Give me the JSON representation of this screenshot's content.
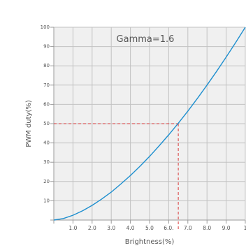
{
  "chart_data": {
    "type": "line",
    "title": "",
    "annotation": "Gamma=1.6",
    "gamma": 1.6,
    "xlabel": "Brightness(%)",
    "ylabel": "PWM duty(%)",
    "xlim": [
      0,
      10
    ],
    "ylim": [
      0,
      100
    ],
    "x_tick_labels": [
      "1.0",
      "2.0",
      "3.0",
      "4.0",
      "5.0",
      "6.0.",
      "7.0",
      "8.0",
      "9.0",
      "1"
    ],
    "y_tick_labels": [
      "10",
      "20",
      "30",
      "40",
      "50",
      "60",
      "70",
      "80",
      "90",
      "100"
    ],
    "grid": true,
    "series": [
      {
        "x": [
          0,
          0.5,
          1.0,
          1.5,
          2.0,
          2.5,
          3.0,
          3.5,
          4.0,
          4.5,
          5.0,
          5.5,
          6.0,
          6.5,
          7.0,
          7.5,
          8.0,
          8.5,
          9.0,
          9.5,
          10.0
        ],
        "y": [
          0,
          0.8,
          2.5,
          4.8,
          7.6,
          10.9,
          14.5,
          18.7,
          23.1,
          27.9,
          33.0,
          38.5,
          44.2,
          50.2,
          56.5,
          63.1,
          70.0,
          77.1,
          84.5,
          92.1,
          100.0
        ]
      }
    ],
    "reference_point": {
      "x": 6.5,
      "y": 50
    },
    "colors": {
      "line": "#1e8fcf",
      "reference": "#d9383a",
      "grid": "#c2c2c2",
      "axis": "#9a9a9a",
      "plot_background": "#f0f0f0",
      "text": "#555555"
    }
  }
}
